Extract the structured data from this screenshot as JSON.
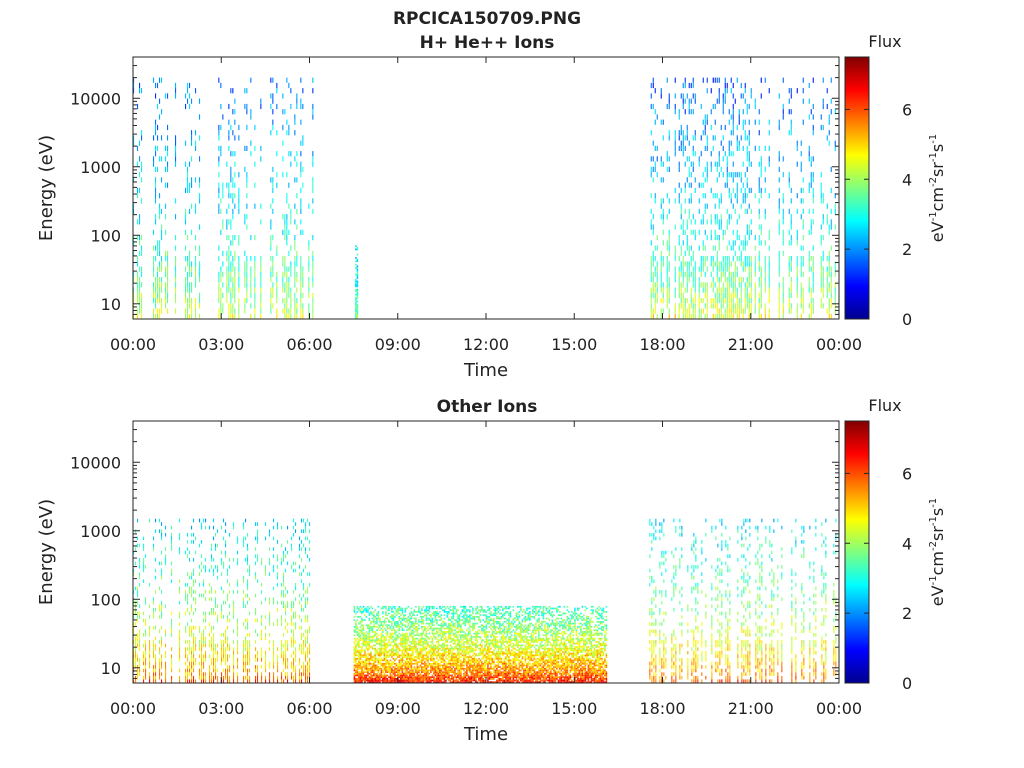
{
  "figure": {
    "title": "RPCICA150709.PNG"
  },
  "chart_data": [
    {
      "type": "heatmap",
      "title": "H+ He++ Ions",
      "xlabel": "Time",
      "ylabel": "Energy (eV)",
      "xticks": [
        "00:00",
        "03:00",
        "06:00",
        "09:00",
        "12:00",
        "15:00",
        "18:00",
        "21:00",
        "00:00"
      ],
      "xlim_hours": [
        0,
        24
      ],
      "yscale": "log",
      "ylim": [
        6,
        40000
      ],
      "yticks": [
        10,
        100,
        1000,
        10000
      ],
      "ytick_labels": [
        "10",
        "100",
        "1000",
        "10000"
      ],
      "colorbar": {
        "label": "Flux",
        "unit_label": "eV-1cm-2sr-1s-1",
        "range": [
          0,
          7.5
        ],
        "ticks": [
          0,
          2,
          4,
          6
        ],
        "colormap": "jet"
      },
      "activity": [
        {
          "start": 0.0,
          "end": 2.35,
          "emin": 6,
          "emax": 20000,
          "flux_low": 4.4,
          "flux_high": 1.8
        },
        {
          "start": 2.9,
          "end": 6.2,
          "emin": 6,
          "emax": 20000,
          "flux_low": 4.4,
          "flux_high": 1.8
        },
        {
          "start": 7.55,
          "end": 7.65,
          "emin": 6,
          "emax": 80,
          "flux_low": 3.8,
          "flux_high": 2.6
        },
        {
          "start": 17.6,
          "end": 23.95,
          "emin": 6,
          "emax": 20000,
          "flux_low": 4.6,
          "flux_high": 1.6
        }
      ]
    },
    {
      "type": "heatmap",
      "title": "Other Ions",
      "xlabel": "Time",
      "ylabel": "Energy (eV)",
      "xticks": [
        "00:00",
        "03:00",
        "06:00",
        "09:00",
        "12:00",
        "15:00",
        "18:00",
        "21:00",
        "00:00"
      ],
      "xlim_hours": [
        0,
        24
      ],
      "yscale": "log",
      "ylim": [
        6,
        40000
      ],
      "yticks": [
        10,
        100,
        1000,
        10000
      ],
      "ytick_labels": [
        "10",
        "100",
        "1000",
        "10000"
      ],
      "colorbar": {
        "label": "Flux",
        "unit_label": "eV-1cm-2sr-1s-1",
        "range": [
          0,
          7.5
        ],
        "ticks": [
          0,
          2,
          4,
          6
        ],
        "colormap": "jet"
      },
      "activity": [
        {
          "start": 0.0,
          "end": 6.05,
          "emin": 6,
          "emax": 1500,
          "flux_low": 5.9,
          "flux_high": 2.6
        },
        {
          "start": 7.5,
          "end": 16.1,
          "emin": 6,
          "emax": 80,
          "flux_low": 6.6,
          "flux_high": 3.2
        },
        {
          "start": 17.55,
          "end": 23.95,
          "emin": 6,
          "emax": 1500,
          "flux_low": 5.9,
          "flux_high": 2.6
        }
      ]
    }
  ]
}
